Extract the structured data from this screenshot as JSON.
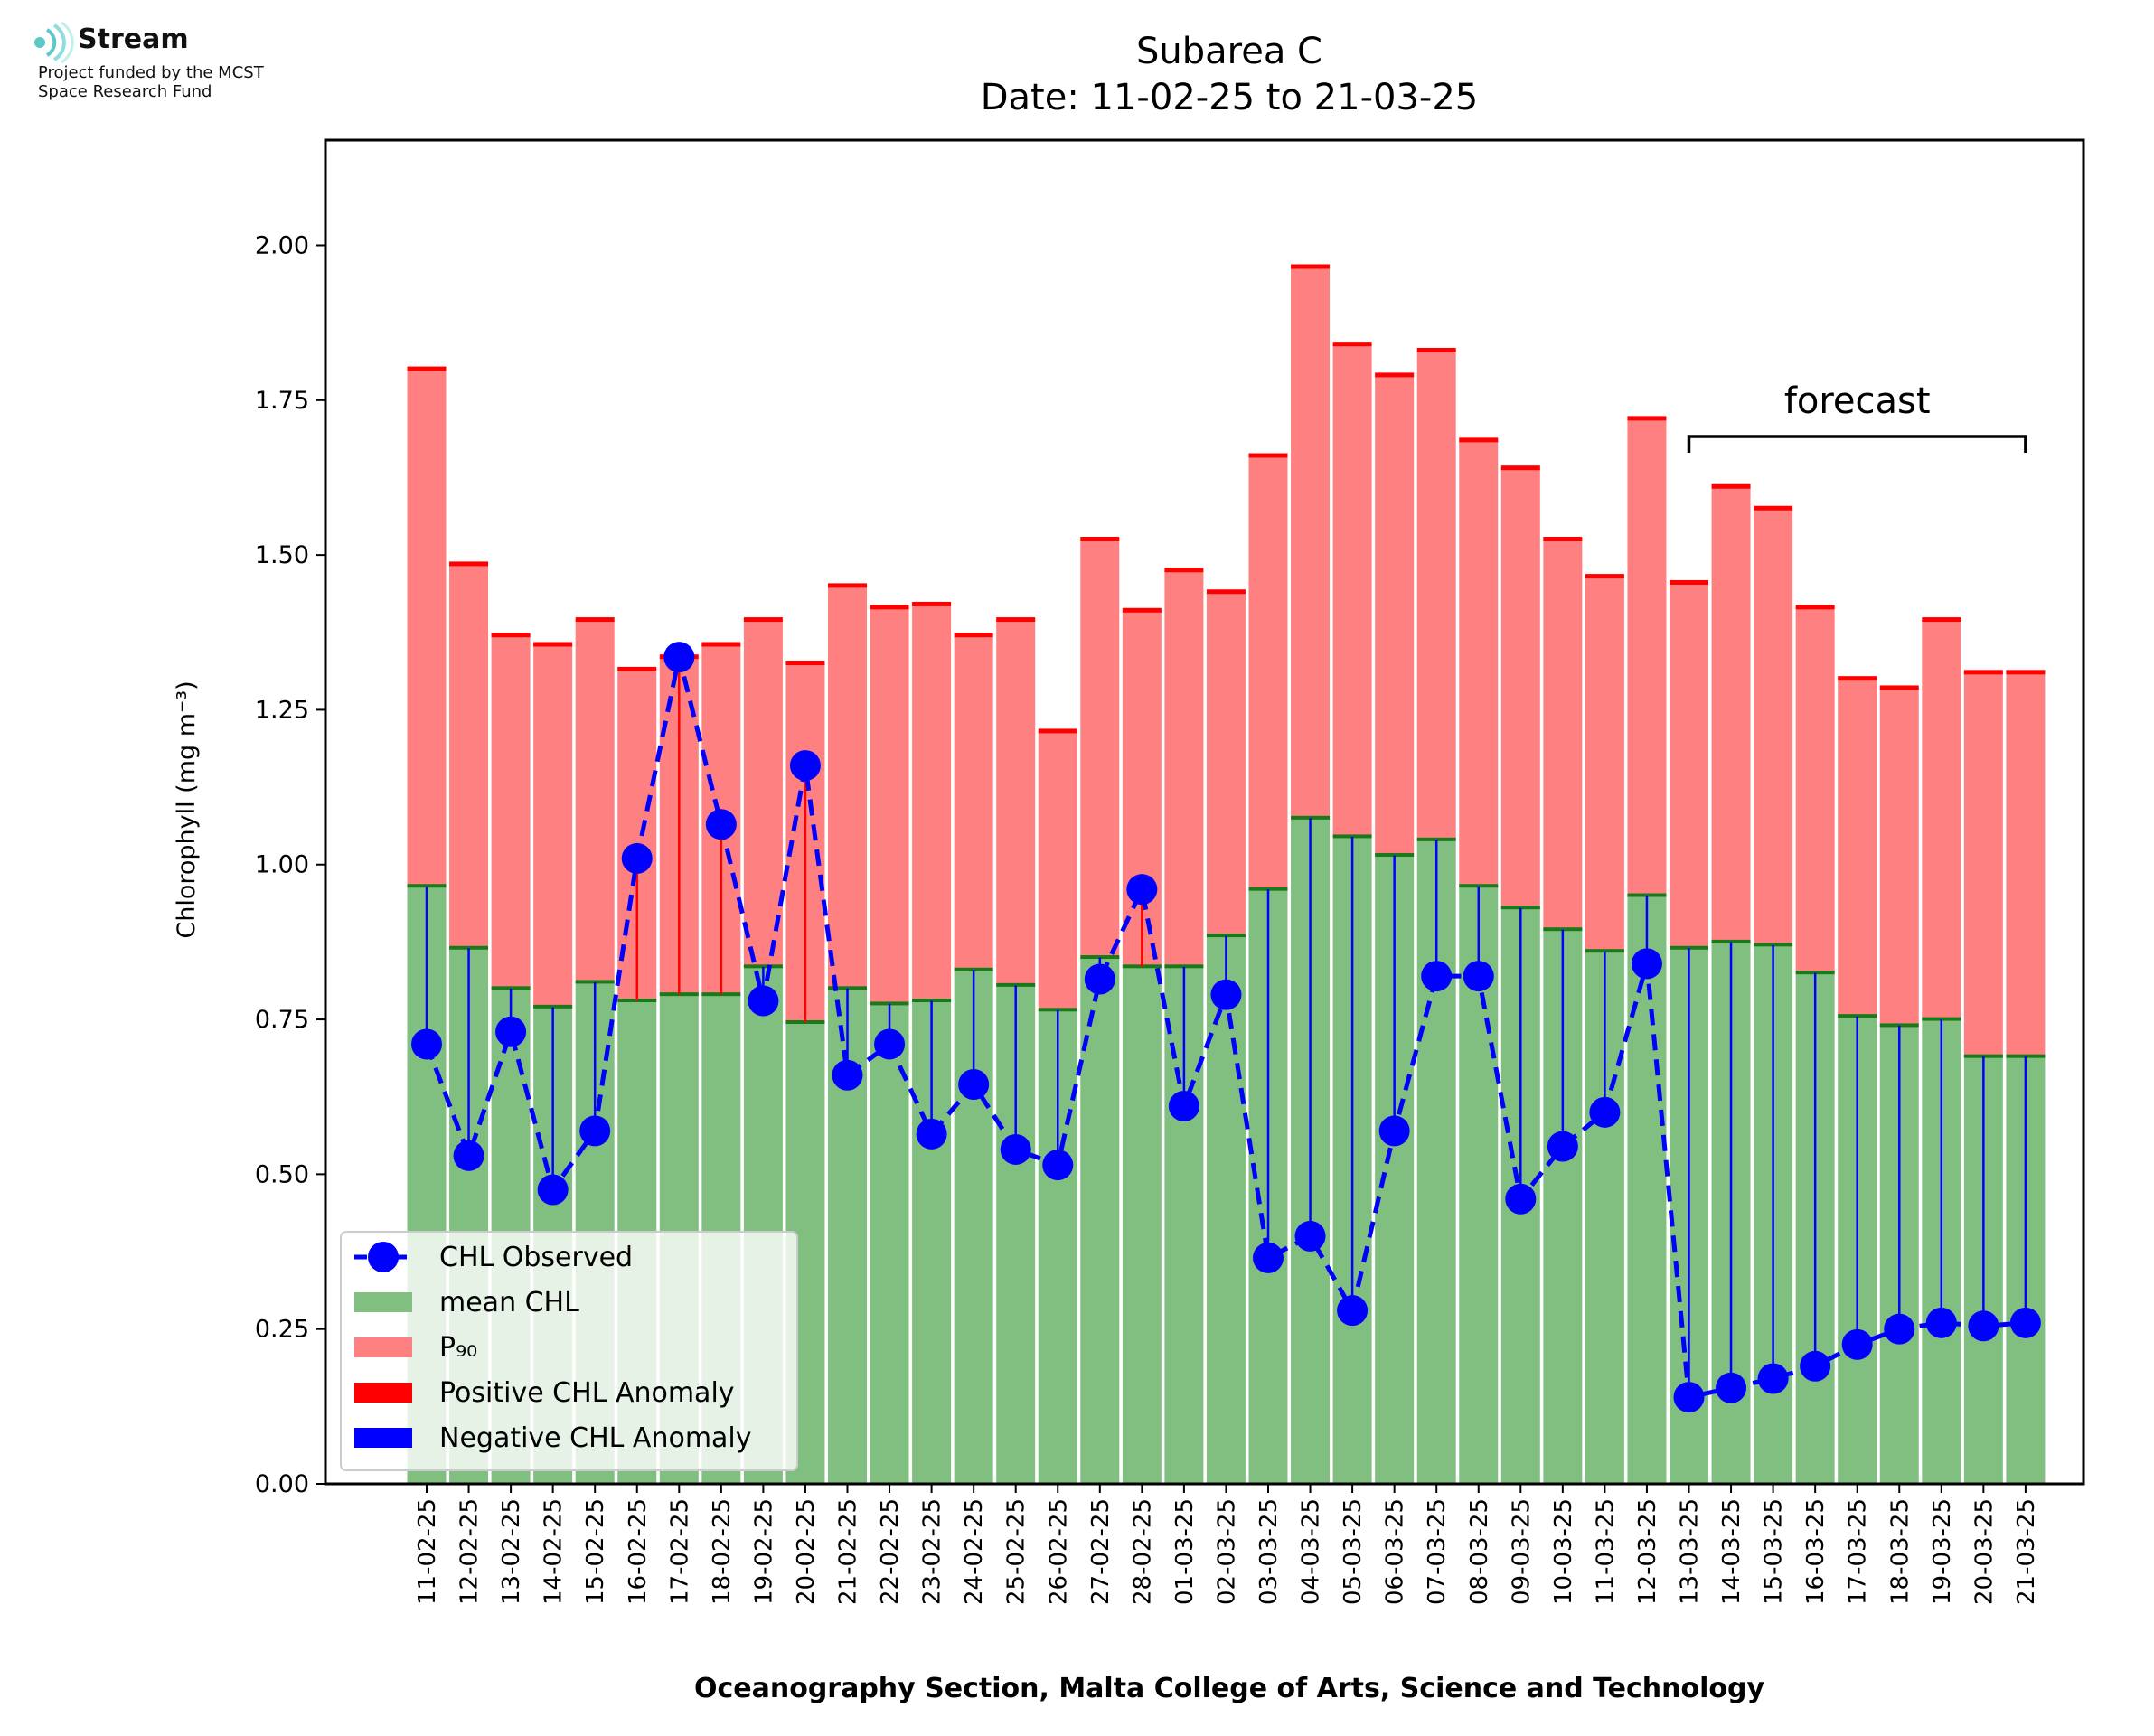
{
  "logo": {
    "name": "Stream",
    "line1": "Project funded by the MCST",
    "line2": "Space Research Fund"
  },
  "colors": {
    "mean_bar": "#80bf80",
    "p90_bar": "#ff8080",
    "mean_cap": "#1a7a1a",
    "p90_cap": "#ff0000",
    "positive_anomaly": "#ff0000",
    "negative_anomaly": "#0000ff",
    "observed": "#0000ff"
  },
  "chart_data": {
    "type": "bar",
    "title": "Subarea C",
    "subtitle": "Date: 11-02-25 to 21-03-25",
    "xlabel": "Oceanography Section, Malta College of Arts, Science and Technology",
    "ylabel": "Chlorophyll (mg m⁻³)",
    "ylim": [
      0,
      2.17
    ],
    "yticks": [
      "0.00",
      "0.25",
      "0.50",
      "0.75",
      "1.00",
      "1.25",
      "1.50",
      "1.75",
      "2.00"
    ],
    "categories": [
      "11-02-25",
      "12-02-25",
      "13-02-25",
      "14-02-25",
      "15-02-25",
      "16-02-25",
      "17-02-25",
      "18-02-25",
      "19-02-25",
      "20-02-25",
      "21-02-25",
      "22-02-25",
      "23-02-25",
      "24-02-25",
      "25-02-25",
      "26-02-25",
      "27-02-25",
      "28-02-25",
      "01-03-25",
      "02-03-25",
      "03-03-25",
      "04-03-25",
      "05-03-25",
      "06-03-25",
      "07-03-25",
      "08-03-25",
      "09-03-25",
      "10-03-25",
      "11-03-25",
      "12-03-25",
      "13-03-25",
      "14-03-25",
      "15-03-25",
      "16-03-25",
      "17-03-25",
      "18-03-25",
      "19-03-25",
      "20-03-25",
      "21-03-25"
    ],
    "series": [
      {
        "name": "mean CHL",
        "kind": "bar",
        "values": [
          0.965,
          0.865,
          0.8,
          0.77,
          0.81,
          0.78,
          0.79,
          0.79,
          0.835,
          0.745,
          0.8,
          0.775,
          0.78,
          0.83,
          0.805,
          0.765,
          0.85,
          0.835,
          0.835,
          0.885,
          0.96,
          1.075,
          1.045,
          1.015,
          1.04,
          0.965,
          0.93,
          0.895,
          0.86,
          0.95,
          0.865,
          0.875,
          0.87,
          0.825,
          0.755,
          0.74,
          0.75,
          0.69,
          0.69
        ]
      },
      {
        "name": "P₉₀",
        "kind": "bar",
        "values": [
          1.8,
          1.485,
          1.37,
          1.355,
          1.395,
          1.315,
          1.335,
          1.355,
          1.395,
          1.325,
          1.45,
          1.415,
          1.42,
          1.37,
          1.395,
          1.215,
          1.525,
          1.41,
          1.475,
          1.44,
          1.66,
          1.965,
          1.84,
          1.79,
          1.83,
          1.685,
          1.64,
          1.525,
          1.465,
          1.72,
          1.455,
          1.61,
          1.575,
          1.415,
          1.3,
          1.285,
          1.395,
          1.31,
          1.31
        ]
      },
      {
        "name": "CHL Observed",
        "kind": "line",
        "values": [
          0.71,
          0.53,
          0.73,
          0.475,
          0.57,
          1.01,
          1.335,
          1.065,
          0.78,
          1.16,
          0.66,
          0.71,
          0.565,
          0.645,
          0.54,
          0.515,
          0.815,
          0.96,
          0.61,
          0.79,
          0.365,
          0.4,
          0.28,
          0.57,
          0.82,
          0.82,
          0.46,
          0.545,
          0.6,
          0.84,
          0.14,
          0.155,
          0.17,
          0.19,
          0.225,
          0.25,
          0.26,
          0.255,
          0.26
        ]
      }
    ],
    "anomaly_legend": [
      "Positive CHL Anomaly",
      "Negative CHL Anomaly"
    ],
    "annotation": {
      "text": "forecast",
      "from": "13-03-25",
      "to": "21-03-25"
    },
    "legend_position": "lower-left",
    "grid": false
  }
}
